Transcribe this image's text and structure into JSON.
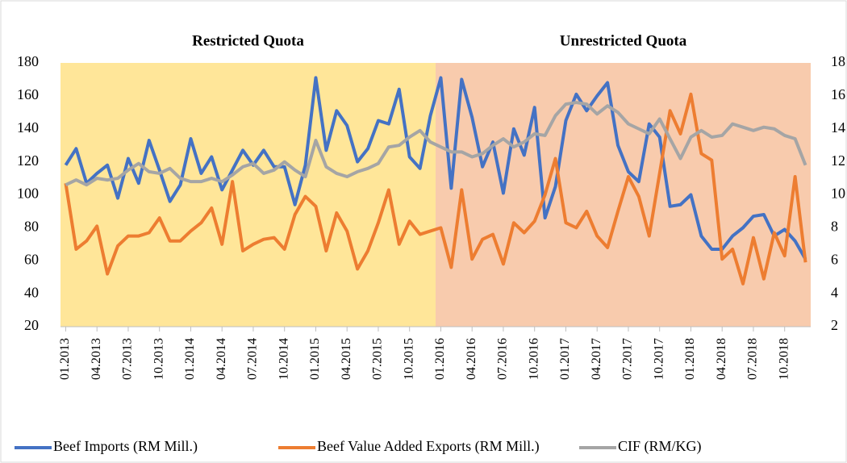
{
  "chart_data": {
    "type": "line",
    "categories": [
      "01.2013",
      null,
      null,
      "04.2013",
      null,
      null,
      "07.2013",
      null,
      null,
      "10.2013",
      null,
      null,
      "01.2014",
      null,
      null,
      "04.2014",
      null,
      null,
      "07.2014",
      null,
      null,
      "10.2014",
      null,
      null,
      "01.2015",
      null,
      null,
      "04.2015",
      null,
      null,
      "07.2015",
      null,
      null,
      "10.2015",
      null,
      null,
      "01.2016",
      null,
      null,
      "04.2016",
      null,
      null,
      "07.2016",
      null,
      null,
      "10.2016",
      null,
      null,
      "01.2017",
      null,
      null,
      "04.2017",
      null,
      null,
      "07.2017",
      null,
      null,
      "10.2017",
      null,
      null,
      "01.2018",
      null,
      null,
      "04.2018",
      null,
      null,
      "07.2018",
      null,
      null,
      "10.2018",
      null,
      null
    ],
    "series": [
      {
        "name": "Beef Imports (RM Mill.)",
        "color": "#4472c4",
        "values": [
          118,
          128,
          107,
          113,
          118,
          98,
          122,
          107,
          133,
          115,
          96,
          106,
          134,
          113,
          123,
          103,
          115,
          127,
          118,
          127,
          117,
          117,
          94,
          118,
          171,
          127,
          151,
          142,
          120,
          128,
          145,
          143,
          164,
          123,
          116,
          148,
          171,
          104,
          170,
          147,
          117,
          132,
          101,
          140,
          124,
          153,
          86,
          105,
          145,
          161,
          151,
          160,
          168,
          130,
          114,
          108,
          143,
          135,
          93,
          94,
          100,
          75,
          67,
          67,
          75,
          80,
          87,
          88,
          75,
          79,
          72,
          61
        ]
      },
      {
        "name": "Beef Value Added Exports (RM Mill.)",
        "color": "#ed7d31",
        "values": [
          107,
          67,
          72,
          81,
          52,
          69,
          75,
          75,
          77,
          86,
          72,
          72,
          78,
          83,
          92,
          70,
          108,
          66,
          70,
          73,
          74,
          67,
          88,
          99,
          93,
          66,
          89,
          78,
          55,
          66,
          83,
          103,
          70,
          84,
          76,
          78,
          80,
          56,
          103,
          61,
          73,
          76,
          58,
          83,
          77,
          84,
          100,
          122,
          83,
          80,
          90,
          75,
          68,
          90,
          111,
          99,
          75,
          113,
          151,
          137,
          161,
          125,
          121,
          61,
          67,
          46,
          74,
          49,
          77,
          63,
          111,
          59
        ]
      },
      {
        "name": "CIF (RM/KG)",
        "color": "#a5a5a5",
        "axis": "y2",
        "values": [
          10.6,
          10.9,
          10.6,
          11.0,
          10.9,
          11.0,
          11.5,
          11.9,
          11.4,
          11.3,
          11.6,
          11.0,
          10.8,
          10.8,
          11.0,
          10.8,
          11.2,
          11.7,
          11.9,
          11.3,
          11.5,
          12.0,
          11.5,
          11.1,
          13.3,
          11.7,
          11.3,
          11.1,
          11.4,
          11.6,
          11.9,
          12.9,
          13.0,
          13.5,
          13.9,
          13.2,
          12.9,
          12.6,
          12.6,
          12.3,
          12.5,
          13.0,
          13.4,
          12.9,
          13.2,
          13.7,
          13.6,
          14.8,
          15.5,
          15.6,
          15.5,
          14.9,
          15.4,
          15.0,
          14.3,
          14.0,
          13.7,
          14.6,
          13.4,
          12.2,
          13.5,
          13.9,
          13.5,
          13.6,
          14.3,
          14.1,
          13.9,
          14.1,
          14.0,
          13.6,
          13.4,
          11.8
        ]
      }
    ],
    "regions": [
      {
        "label": "Restricted Quota",
        "color": "#ffe699",
        "start": "01.2013",
        "end": "01.2016"
      },
      {
        "label": "Unrestricted Quota",
        "color": "#f8cbad",
        "start": "01.2016"
      }
    ],
    "ylim": [
      20,
      180
    ],
    "yticks": [
      20,
      40,
      60,
      80,
      100,
      120,
      140,
      160,
      180
    ],
    "y2lim": [
      2,
      18
    ],
    "y2ticks": [
      2,
      4,
      6,
      8,
      10,
      12,
      14,
      16,
      18
    ],
    "legend": "bottom",
    "grid": false
  }
}
